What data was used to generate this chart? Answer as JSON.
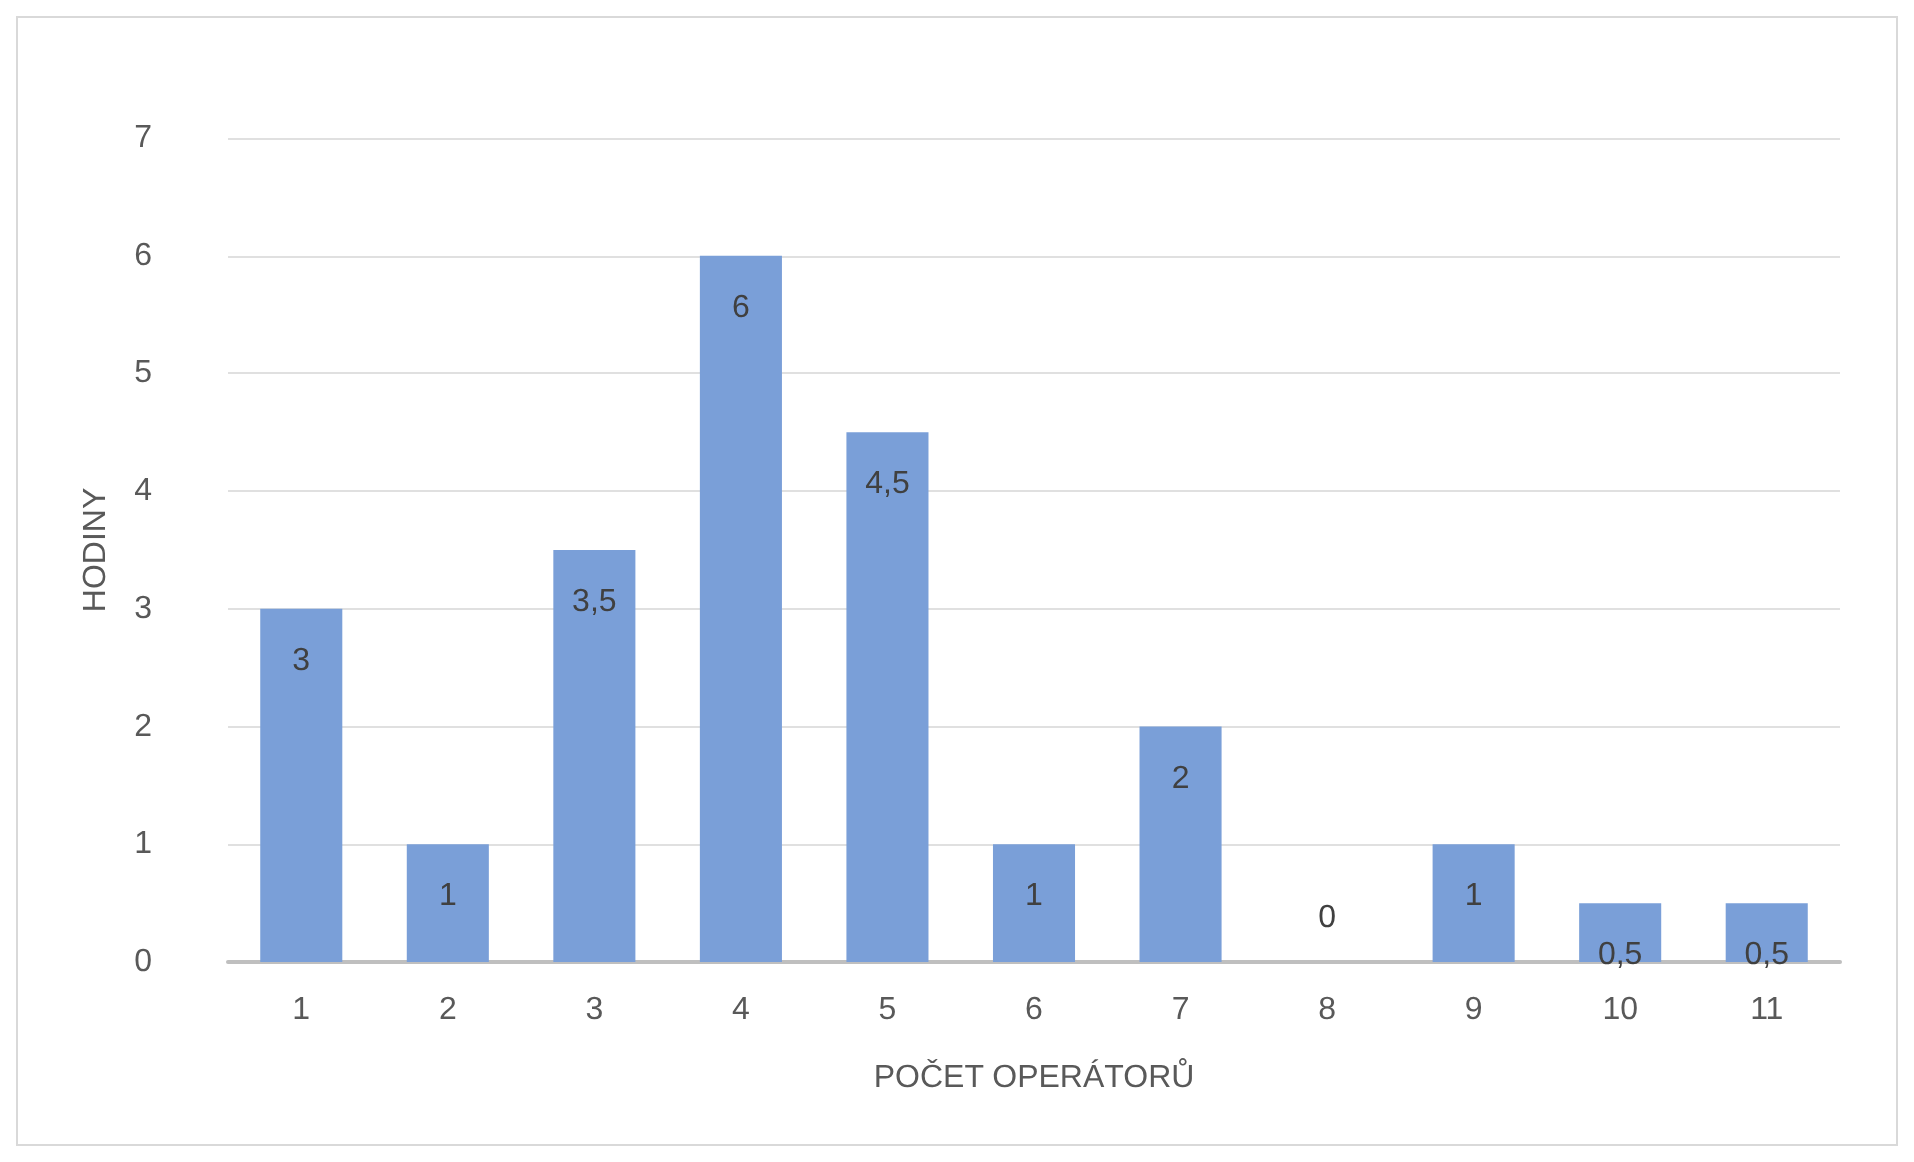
{
  "chart_data": {
    "type": "bar",
    "xlabel": "POČET OPERÁTORŮ",
    "ylabel": "HODINY",
    "categories": [
      "1",
      "2",
      "3",
      "4",
      "5",
      "6",
      "7",
      "8",
      "9",
      "10",
      "11"
    ],
    "values": [
      3,
      1,
      3.5,
      6,
      4.5,
      1,
      2,
      0,
      1,
      0.5,
      0.5
    ],
    "value_labels": [
      "3",
      "1",
      "3,5",
      "6",
      "4,5",
      "1",
      "2",
      "0",
      "1",
      "0,5",
      "0,5"
    ],
    "color": "#7a9fd8",
    "ylim": [
      0,
      7
    ],
    "yticks": [
      0,
      1,
      2,
      3,
      4,
      5,
      6,
      7
    ],
    "grid": "y"
  }
}
